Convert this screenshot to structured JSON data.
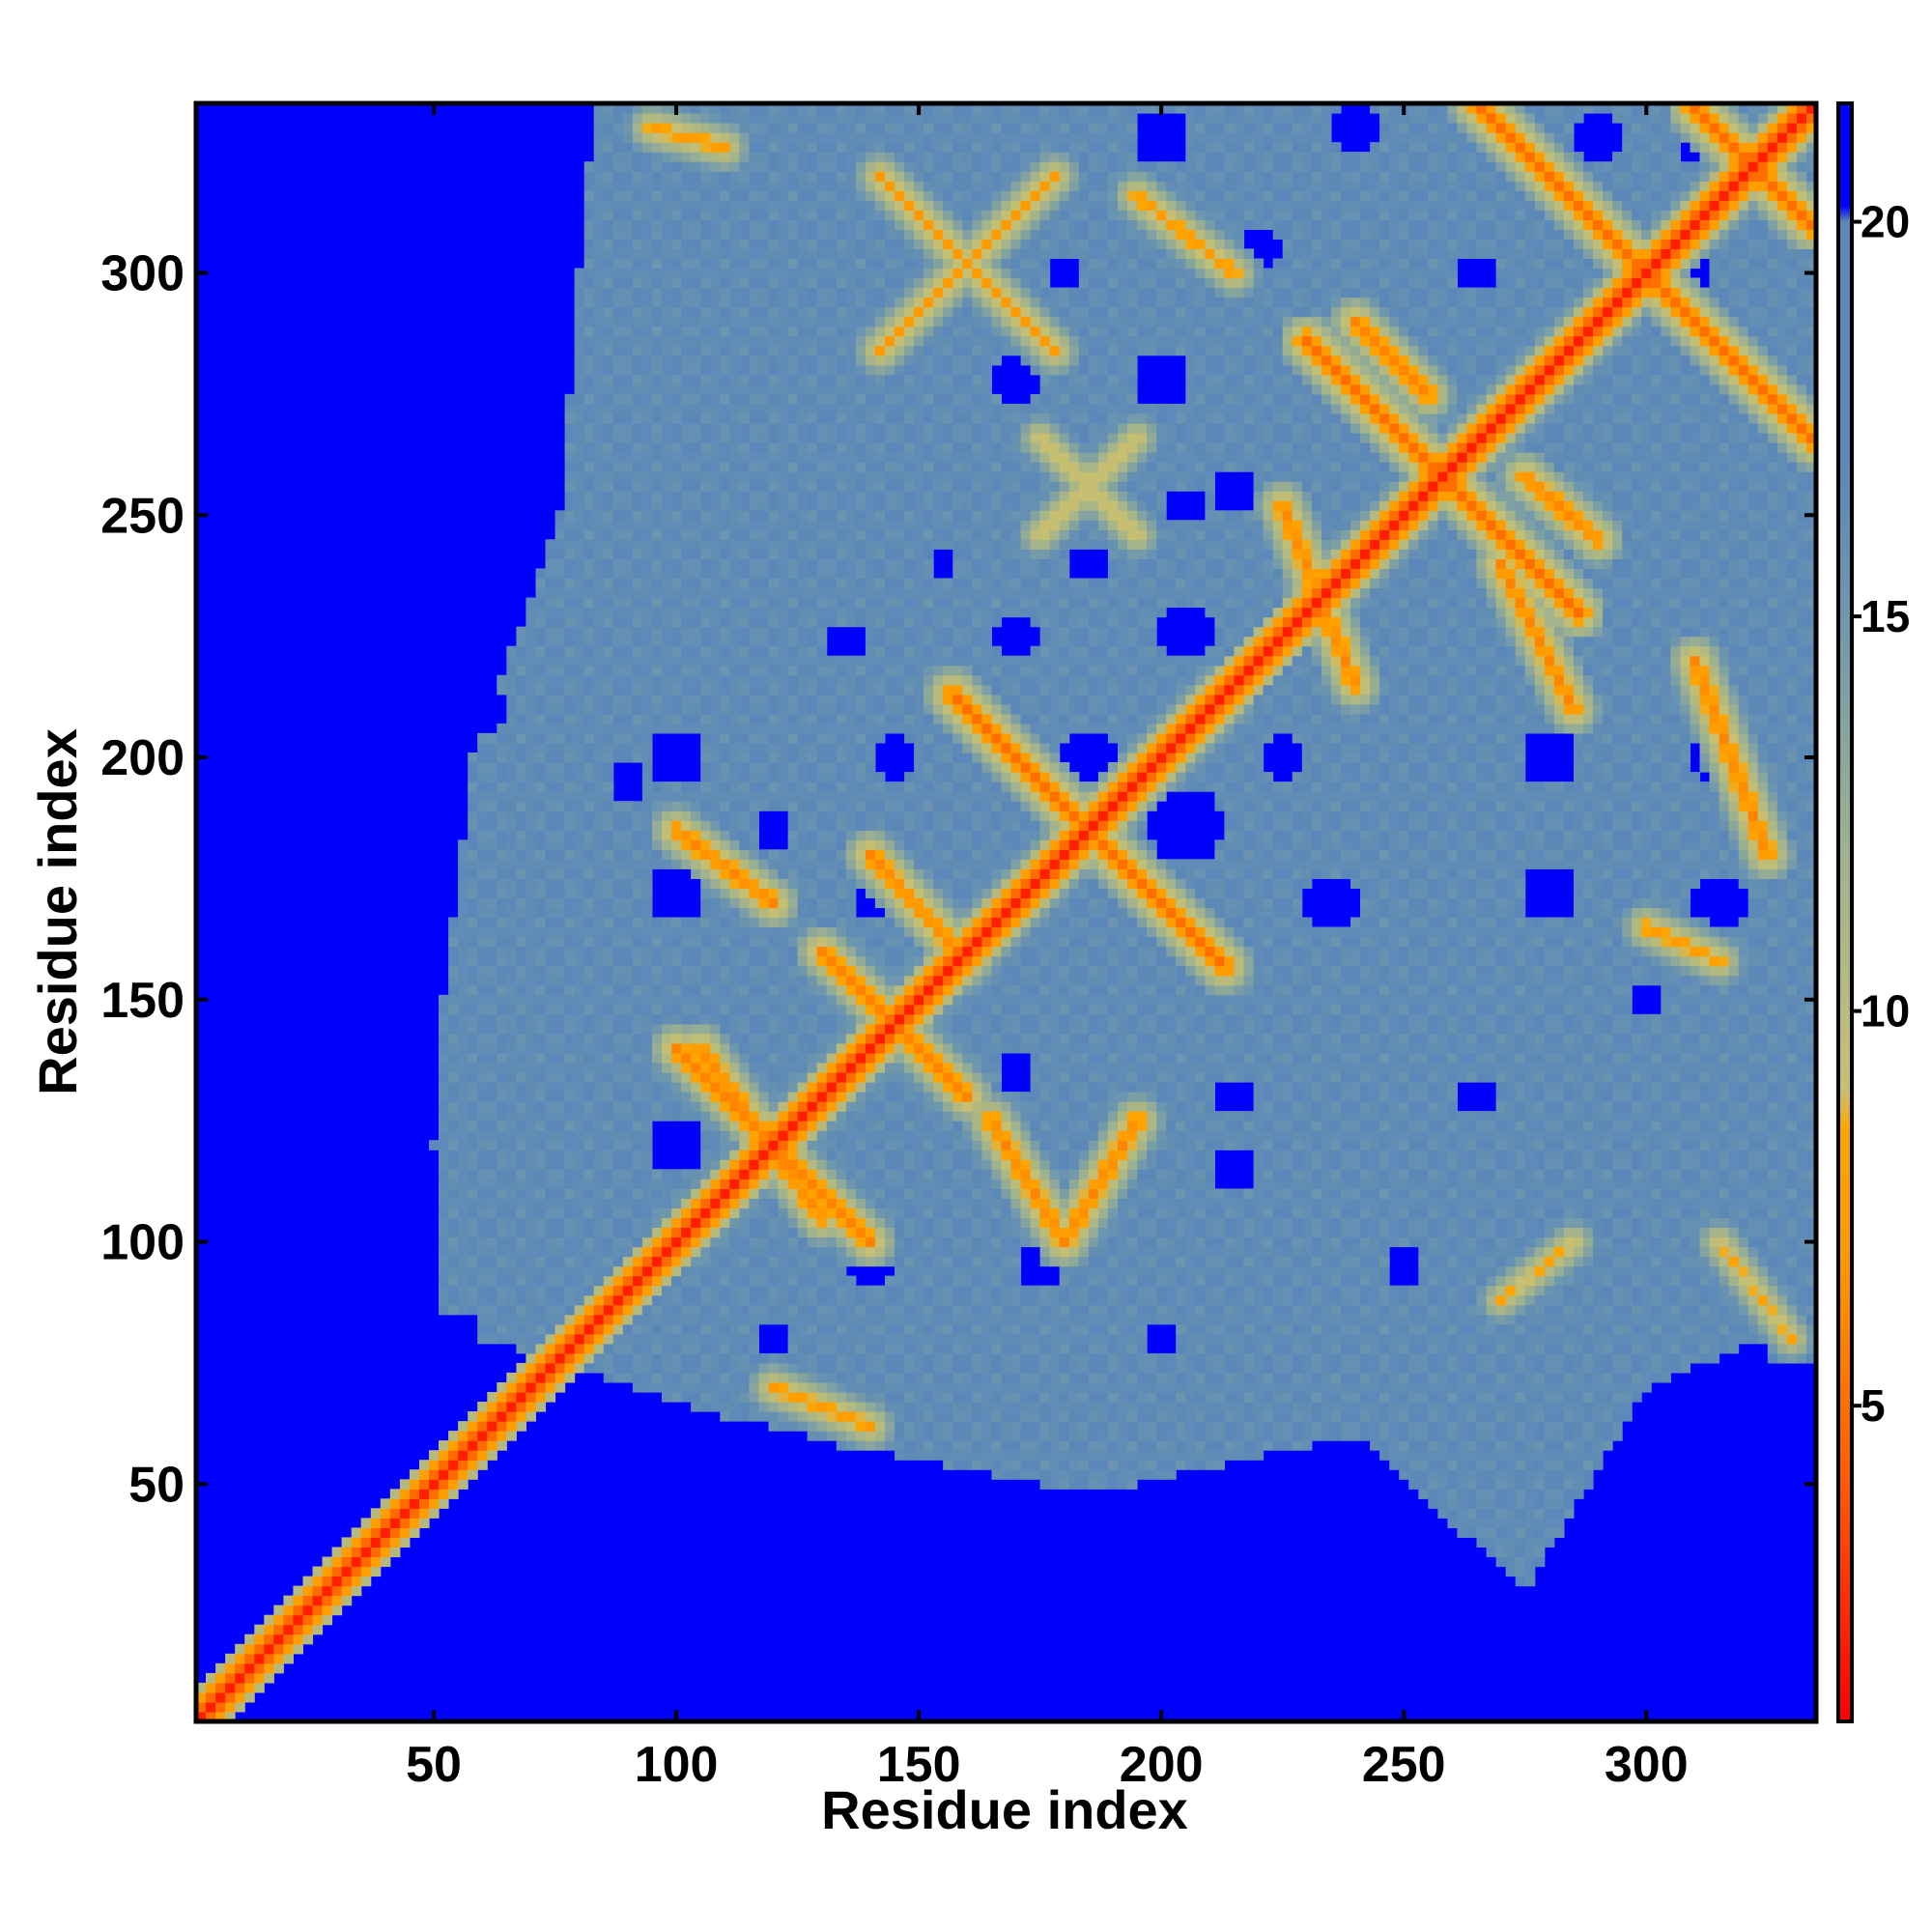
{
  "chart_data": {
    "type": "heatmap",
    "title": "",
    "xlabel": "Residue index",
    "ylabel": "Residue index",
    "xlim": [
      1,
      335
    ],
    "ylim": [
      1,
      335
    ],
    "x_ticks": [
      50,
      100,
      150,
      200,
      250,
      300
    ],
    "y_ticks": [
      50,
      100,
      150,
      200,
      250,
      300
    ],
    "x_tick_labels": [
      "50",
      "100",
      "150",
      "200",
      "250",
      "300"
    ],
    "y_tick_labels": [
      "50",
      "100",
      "150",
      "200",
      "250",
      "300"
    ],
    "n_residues": 335,
    "colorbar": {
      "range": [
        1,
        21.5
      ],
      "ticks": [
        5,
        10,
        15,
        20
      ],
      "tick_labels": [
        "5",
        "10",
        "15",
        "20"
      ],
      "stops": [
        {
          "value": 1,
          "color": "#ff0000"
        },
        {
          "value": 4,
          "color": "#ff5a00"
        },
        {
          "value": 7,
          "color": "#ff9a00"
        },
        {
          "value": 8.5,
          "color": "#ffa500"
        },
        {
          "value": 9,
          "color": "#c8c070"
        },
        {
          "value": 12,
          "color": "#9fb28f"
        },
        {
          "value": 15,
          "color": "#6f97ae"
        },
        {
          "value": 17,
          "color": "#5b88b8"
        },
        {
          "value": 20,
          "color": "#5b88b8"
        },
        {
          "value": 20.2,
          "color": "#0000ff"
        },
        {
          "value": 21.5,
          "color": "#0000ff"
        }
      ]
    },
    "background_value": 21,
    "blue_region_upper_triangle": [
      {
        "x": 1,
        "y": 335,
        "side": "left",
        "x_edge": [
          [
            335,
            83
          ],
          [
            300,
            80
          ],
          [
            250,
            76
          ],
          [
            200,
            58
          ],
          [
            150,
            52
          ],
          [
            120,
            50
          ],
          [
            100,
            52
          ]
        ]
      },
      {
        "y": 1,
        "side": "bottom",
        "y_edge": [
          [
            60,
            80
          ],
          [
            110,
            64
          ],
          [
            150,
            55
          ],
          [
            185,
            48
          ],
          [
            240,
            60
          ],
          [
            275,
            28
          ],
          [
            300,
            70
          ],
          [
            335,
            85
          ]
        ]
      }
    ],
    "diagonal": {
      "value": 2,
      "halo_value": 10
    },
    "contact_features": [
      {
        "type": "cross",
        "center": [
          185,
          185
        ],
        "length": 28,
        "value": 5
      },
      {
        "type": "cross",
        "center": [
          258,
          258
        ],
        "length": 28,
        "value": 5
      },
      {
        "type": "cross",
        "center": [
          300,
          300
        ],
        "length": 35,
        "value": 5
      },
      {
        "type": "cross",
        "center": [
          322,
          322
        ],
        "length": 12,
        "value": 5
      },
      {
        "type": "cross",
        "center": [
          145,
          145
        ],
        "length": 15,
        "value": 6
      },
      {
        "type": "cross",
        "center": [
          120,
          120
        ],
        "length": 20,
        "value": 6
      },
      {
        "type": "cross",
        "center": [
          160,
          302
        ],
        "length": 18,
        "value": 7
      },
      {
        "type": "cross",
        "center": [
          185,
          256
        ],
        "length": 10,
        "value": 8
      },
      {
        "type": "antiparallel",
        "from": [
          100,
          185
        ],
        "to": [
          120,
          170
        ],
        "value": 6
      },
      {
        "type": "antiparallel",
        "from": [
          105,
          140
        ],
        "to": [
          130,
          105
        ],
        "value": 6
      },
      {
        "type": "antiparallel",
        "from": [
          140,
          180
        ],
        "to": [
          160,
          158
        ],
        "value": 6
      },
      {
        "type": "antiparallel",
        "from": [
          165,
          125
        ],
        "to": [
          180,
          100
        ],
        "value": 6
      },
      {
        "type": "antiparallel",
        "from": [
          180,
          100
        ],
        "to": [
          195,
          125
        ],
        "value": 6
      },
      {
        "type": "antiparallel",
        "from": [
          225,
          252
        ],
        "to": [
          240,
          215
        ],
        "value": 6
      },
      {
        "type": "antiparallel",
        "from": [
          270,
          240
        ],
        "to": [
          285,
          210
        ],
        "value": 6
      },
      {
        "type": "antiparallel",
        "from": [
          310,
          220
        ],
        "to": [
          325,
          180
        ],
        "value": 6
      },
      {
        "type": "antiparallel",
        "from": [
          195,
          316
        ],
        "to": [
          215,
          300
        ],
        "value": 7
      },
      {
        "type": "antiparallel",
        "from": [
          230,
          286
        ],
        "to": [
          245,
          270
        ],
        "value": 7
      },
      {
        "type": "antiparallel",
        "from": [
          240,
          290
        ],
        "to": [
          255,
          275
        ],
        "value": 6
      },
      {
        "type": "antiparallel",
        "from": [
          275,
          258
        ],
        "to": [
          290,
          245
        ],
        "value": 6
      },
      {
        "type": "antiparallel",
        "from": [
          300,
          165
        ],
        "to": [
          315,
          158
        ],
        "value": 7
      },
      {
        "type": "antiparallel",
        "from": [
          95,
          330
        ],
        "to": [
          110,
          326
        ],
        "value": 7
      },
      {
        "type": "antiparallel",
        "from": [
          120,
          70
        ],
        "to": [
          140,
          62
        ],
        "value": 7
      },
      {
        "type": "antiparallel",
        "from": [
          270,
          88
        ],
        "to": [
          285,
          100
        ],
        "value": 8
      },
      {
        "type": "antiparallel",
        "from": [
          315,
          100
        ],
        "to": [
          330,
          80
        ],
        "value": 8
      }
    ],
    "blue_islands_upper": [
      [
        200,
        328,
        6
      ],
      [
        240,
        330,
        5
      ],
      [
        290,
        328,
        5
      ],
      [
        310,
        326,
        4
      ],
      [
        220,
        305,
        5
      ],
      [
        157,
        306,
        4
      ],
      [
        180,
        300,
        4
      ],
      [
        265,
        300,
        4
      ],
      [
        310,
        300,
        4
      ],
      [
        170,
        278,
        5
      ],
      [
        200,
        278,
        6
      ],
      [
        245,
        275,
        4
      ],
      [
        215,
        255,
        5
      ],
      [
        205,
        252,
        4
      ],
      [
        155,
        240,
        3
      ],
      [
        185,
        240,
        4
      ],
      [
        170,
        225,
        5
      ],
      [
        205,
        226,
        6
      ],
      [
        135,
        224,
        4
      ],
      [
        225,
        200,
        5
      ],
      [
        280,
        200,
        6
      ],
      [
        315,
        200,
        6
      ],
      [
        185,
        200,
        6
      ],
      [
        145,
        200,
        5
      ],
      [
        100,
        200,
        6
      ],
      [
        205,
        186,
        8
      ],
      [
        120,
        185,
        4
      ],
      [
        235,
        170,
        6
      ],
      [
        280,
        172,
        6
      ],
      [
        315,
        170,
        6
      ],
      [
        100,
        172,
        6
      ],
      [
        140,
        170,
        4
      ],
      [
        170,
        135,
        4
      ],
      [
        215,
        130,
        4
      ],
      [
        265,
        130,
        4
      ],
      [
        300,
        150,
        3
      ],
      [
        215,
        115,
        5
      ],
      [
        100,
        120,
        6
      ],
      [
        140,
        95,
        5
      ],
      [
        175,
        95,
        5
      ],
      [
        250,
        95,
        4
      ],
      [
        200,
        80,
        4
      ],
      [
        120,
        80,
        4
      ],
      [
        90,
        195,
        4
      ],
      [
        60,
        210,
        5
      ]
    ]
  }
}
